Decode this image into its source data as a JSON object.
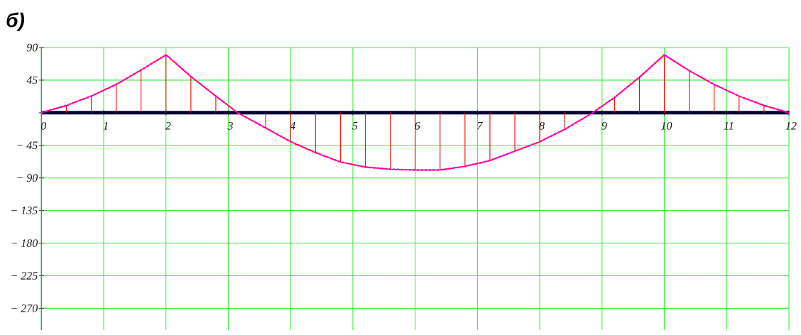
{
  "chart_data": {
    "type": "line",
    "title": "б)",
    "xlim": [
      0,
      12
    ],
    "ylim": [
      -300,
      90
    ],
    "xticks": [
      0,
      1,
      2,
      3,
      4,
      5,
      6,
      7,
      8,
      9,
      10,
      11,
      12
    ],
    "yticks": [
      90,
      45,
      {
        "value": 0,
        "label": null
      },
      {
        "value": -45,
        "label": "− 45"
      },
      {
        "value": -90,
        "label": "− 90"
      },
      {
        "value": -135,
        "label": "− 135"
      },
      {
        "value": -180,
        "label": "− 180"
      },
      {
        "value": -225,
        "label": "− 225"
      },
      {
        "value": -270,
        "label": "− 270"
      }
    ],
    "grid": true,
    "series": [
      {
        "type": "bar",
        "color": "#ff0000",
        "x": [
          0.4,
          0.8,
          1.2,
          1.6,
          2,
          2.4,
          2.8,
          3.6,
          4,
          4.4,
          4.8,
          5.2,
          5.6,
          6,
          6.4,
          6.8,
          7.2,
          7.6,
          8,
          8.4,
          9.2,
          9.6,
          10,
          10.4,
          10.8,
          11.2,
          11.6
        ],
        "values": [
          10,
          23,
          39,
          59,
          80,
          50,
          23,
          -21,
          -40,
          -55,
          -68,
          -75,
          -78,
          -79,
          -79,
          -74,
          -66,
          -53,
          -40,
          -23,
          21,
          49,
          80,
          58,
          39,
          23,
          10
        ]
      },
      {
        "color": "#ff0000",
        "line_style": "solid",
        "x": [
          0,
          0.4,
          0.8,
          1,
          1.2,
          1.6,
          2,
          2.4,
          2.8,
          3,
          3.15,
          3.6,
          4,
          4.4,
          4.8,
          5.2,
          5.6,
          6,
          6.4,
          6.8,
          7.2,
          7.6,
          8,
          8.4,
          8.85,
          9,
          9.2,
          9.6,
          10,
          10.4,
          10.8,
          11,
          11.2,
          11.6,
          12
        ],
        "values": [
          0,
          10,
          23,
          31,
          39,
          59,
          80,
          50,
          23,
          10,
          0,
          -21,
          -40,
          -55,
          -68,
          -75,
          -78,
          -79,
          -79,
          -74,
          -66,
          -53,
          -40,
          -23,
          0,
          9,
          21,
          49,
          80,
          58,
          39,
          31,
          23,
          10,
          0
        ]
      },
      {
        "color": "#ff00ff",
        "line_style": "dashed",
        "x": [
          0,
          0.4,
          0.8,
          1,
          1.2,
          1.6,
          2,
          2.4,
          2.8,
          3,
          3.15,
          3.6,
          4,
          4.4,
          4.8,
          5.2,
          5.6,
          6,
          6.4,
          6.8,
          7.2,
          7.6,
          8,
          8.4,
          8.85,
          9,
          9.2,
          9.6,
          10,
          10.4,
          10.8,
          11,
          11.2,
          11.6,
          12
        ],
        "values": [
          0,
          10,
          23,
          31,
          39,
          59,
          80,
          50,
          23,
          10,
          0,
          -21,
          -40,
          -55,
          -68,
          -75,
          -78,
          -79,
          -79,
          -74,
          -66,
          -53,
          -40,
          -23,
          0,
          9,
          21,
          49,
          80,
          58,
          39,
          31,
          23,
          10,
          0
        ]
      }
    ]
  }
}
